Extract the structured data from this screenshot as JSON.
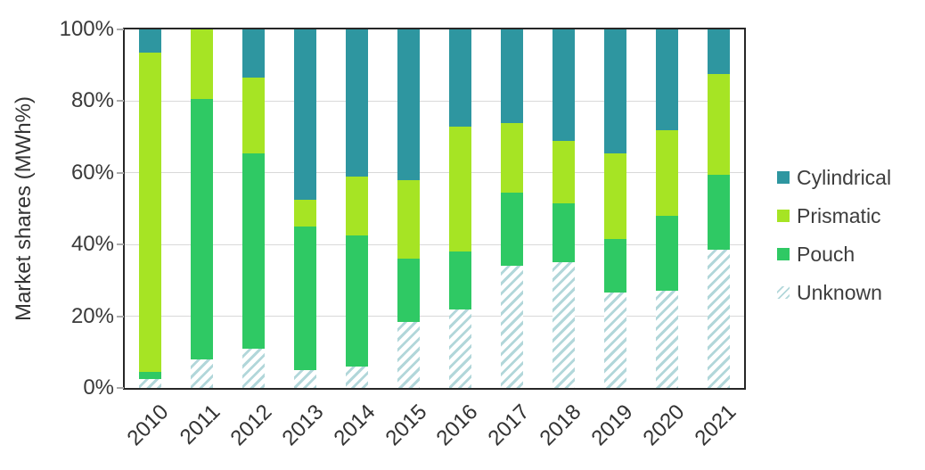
{
  "chart_data": {
    "type": "bar",
    "stacked": true,
    "title": "",
    "ylabel": "Market shares (MWh%)",
    "xlabel": "",
    "ylim": [
      0,
      100
    ],
    "yticks": [
      0,
      20,
      40,
      60,
      80,
      100
    ],
    "ytick_labels": [
      "0%",
      "20%",
      "40%",
      "60%",
      "80%",
      "100%"
    ],
    "grid": true,
    "categories": [
      "2010",
      "2011",
      "2012",
      "2013",
      "2014",
      "2015",
      "2016",
      "2017",
      "2018",
      "2019",
      "2020",
      "2021"
    ],
    "series": [
      {
        "name": "Unknown",
        "style": "hatched",
        "fill": "#ffffff",
        "stripe_color": "#b2d7da",
        "values": [
          2.5,
          8,
          11,
          5,
          6,
          18.5,
          22,
          34,
          35,
          26.5,
          27,
          38.5
        ]
      },
      {
        "name": "Pouch",
        "color": "#2fc964",
        "values": [
          2,
          72.5,
          54.5,
          40,
          36.5,
          17.5,
          16,
          20.5,
          16.5,
          15,
          21,
          21
        ]
      },
      {
        "name": "Prismatic",
        "color": "#a6e424",
        "values": [
          89,
          19.5,
          21,
          7.5,
          16.5,
          22,
          35,
          19.5,
          17.5,
          24,
          24,
          28
        ]
      },
      {
        "name": "Cylindrical",
        "color": "#2e96a0",
        "values": [
          6.5,
          0,
          13.5,
          47.5,
          41,
          42,
          27,
          26,
          31,
          34.5,
          28,
          12.5
        ]
      }
    ],
    "legend": {
      "position": "right",
      "entries": [
        "Cylindrical",
        "Prismatic",
        "Pouch",
        "Unknown"
      ]
    }
  },
  "palette": {
    "background": "#ffffff",
    "axis_frame": "#262626",
    "gridline": "#d9d9d9",
    "tick_mark": "#ababab",
    "text": "#3a3a3a",
    "hatch_stripe": "#b2d7da"
  }
}
